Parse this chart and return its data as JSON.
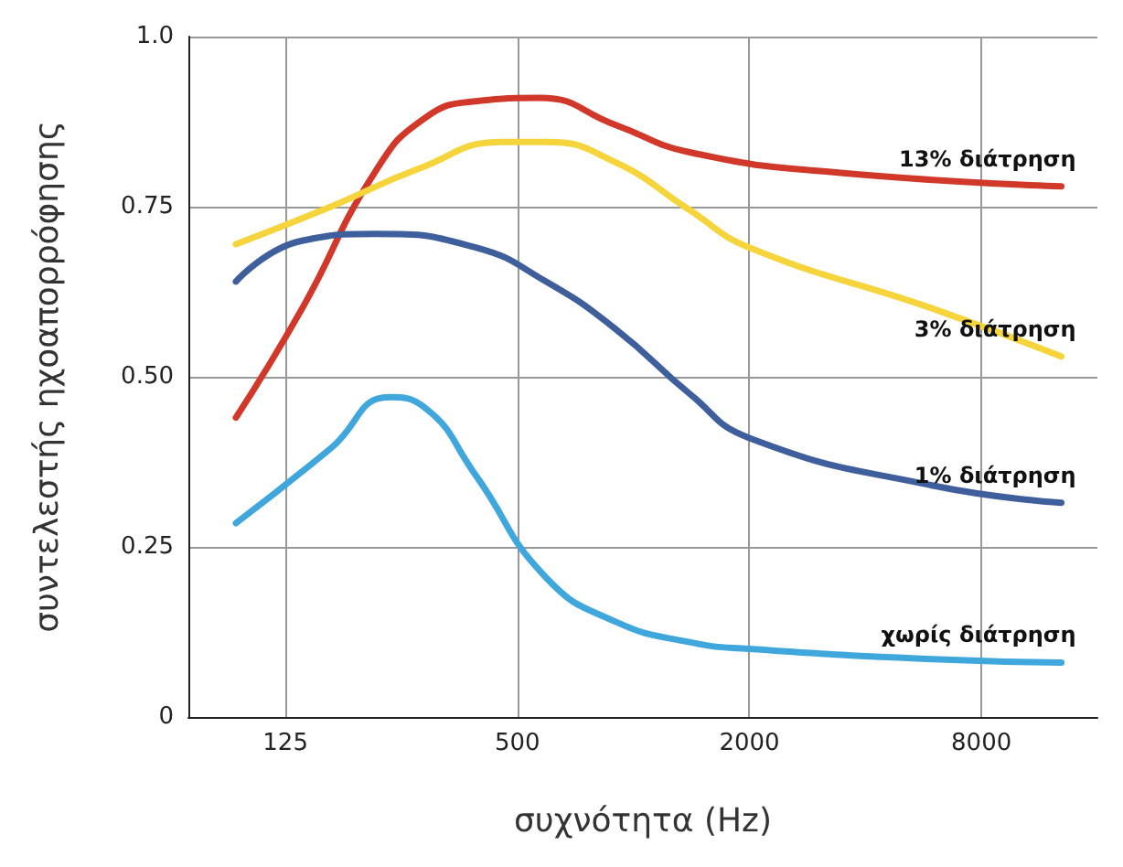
{
  "chart_data": {
    "type": "line",
    "xlabel": "συχνότητα (Hz)",
    "ylabel": "συντελεστής ηχοαπορρόφησης",
    "log": "x",
    "xlim": [
      70,
      16000
    ],
    "xticks": [
      125,
      500,
      2000,
      8000
    ],
    "ylim": [
      0,
      1
    ],
    "yticks": [
      0,
      {
        "value": 0.25,
        "label": "0.25"
      },
      {
        "value": 0.5,
        "label": "0.50"
      },
      {
        "value": 0.75,
        "label": "0.75"
      },
      {
        "value": 1,
        "label": "1.0"
      }
    ],
    "grid": true,
    "legend": false,
    "marker": "none",
    "line_style": "solid",
    "series": [
      {
        "name": "13% διάτρηση",
        "color": "#d2382a",
        "x": [
          93,
          138,
          213,
          287,
          390,
          570,
          900,
          1400,
          3400,
          12900
        ],
        "values": [
          0.44,
          0.6,
          0.8,
          0.88,
          0.905,
          0.91,
          0.87,
          0.83,
          0.8,
          0.78
        ]
      },
      {
        "name": "3% διάτρηση",
        "color": "#f5d43c",
        "x": [
          93,
          164,
          275,
          459,
          593,
          900,
          1400,
          2000,
          6000,
          12900
        ],
        "values": [
          0.695,
          0.75,
          0.805,
          0.845,
          0.845,
          0.815,
          0.745,
          0.69,
          0.6,
          0.53
        ]
      },
      {
        "name": "1% διάτρηση",
        "color": "#3e5f9b",
        "x": [
          93,
          138,
          213,
          390,
          593,
          900,
          1400,
          2000,
          6000,
          12900
        ],
        "values": [
          0.64,
          0.7,
          0.71,
          0.69,
          0.64,
          0.57,
          0.475,
          0.41,
          0.34,
          0.315
        ]
      },
      {
        "name": "χωρίς διάτρηση",
        "color": "#3fa7dc",
        "x": [
          93,
          164,
          232,
          287,
          390,
          593,
          900,
          1400,
          2000,
          6000,
          12900
        ],
        "values": [
          0.285,
          0.395,
          0.47,
          0.455,
          0.355,
          0.205,
          0.14,
          0.11,
          0.1,
          0.085,
          0.08
        ]
      }
    ]
  }
}
